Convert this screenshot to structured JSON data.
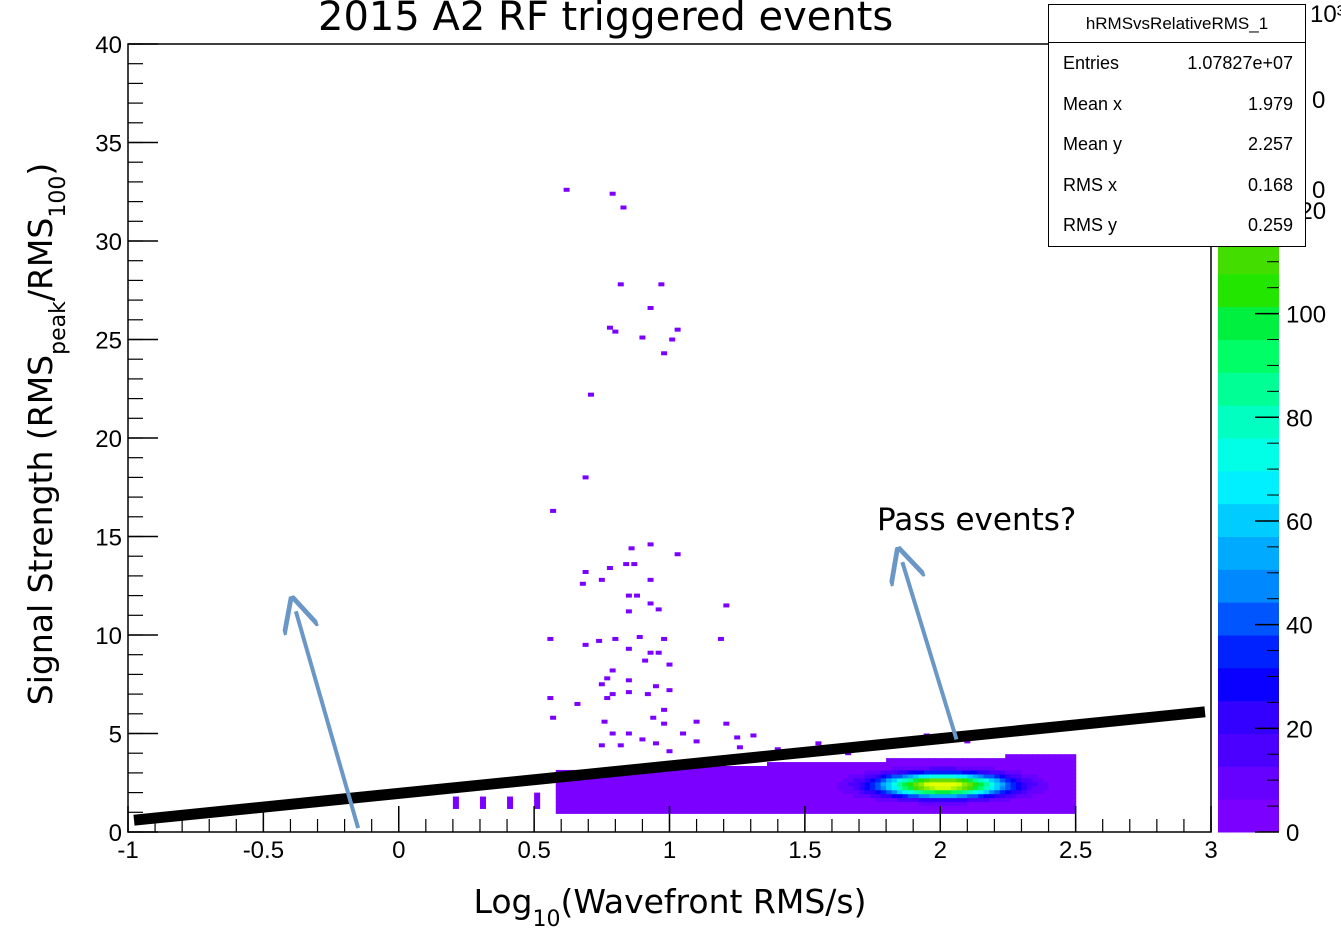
{
  "chart_data": {
    "type": "heatmap",
    "title": "2015 A2 RF triggered events",
    "xlabel": "Log10(Wavefront RMS/s)",
    "ylabel": "Signal Strength (RMSpeak/RMS100)",
    "xlim": [
      -1,
      3
    ],
    "ylim": [
      0,
      40
    ],
    "x_ticks": [
      "-1",
      "-0.5",
      "0",
      "0.5",
      "1",
      "1.5",
      "2",
      "2.5",
      "3"
    ],
    "y_ticks": [
      "0",
      "5",
      "10",
      "15",
      "20",
      "25",
      "30",
      "35",
      "40"
    ],
    "colorbar": {
      "ticks": [
        "0",
        "20",
        "40",
        "60",
        "80",
        "100",
        "120"
      ],
      "exponent_label": "10³",
      "colors": [
        "#7b00ff",
        "#6600ff",
        "#4b00ff",
        "#3300ff",
        "#0a00ff",
        "#0022ff",
        "#0055ff",
        "#0088ff",
        "#00aaff",
        "#00ccff",
        "#00f0ff",
        "#00ffe6",
        "#00ffc0",
        "#00ff95",
        "#00ff66",
        "#00f040",
        "#22e600",
        "#44dd00",
        "#66e000",
        "#88ee00",
        "#aaf500",
        "#ccff00",
        "#e6ff00",
        "#ffff00"
      ]
    },
    "scatter_points": [
      [
        0.62,
        32.6
      ],
      [
        0.79,
        32.4
      ],
      [
        0.83,
        31.7
      ],
      [
        0.82,
        27.8
      ],
      [
        0.97,
        27.8
      ],
      [
        0.93,
        26.6
      ],
      [
        0.78,
        25.6
      ],
      [
        0.8,
        25.4
      ],
      [
        1.03,
        25.5
      ],
      [
        0.9,
        25.1
      ],
      [
        1.01,
        25.0
      ],
      [
        0.98,
        24.3
      ],
      [
        0.71,
        22.2
      ],
      [
        0.69,
        18.0
      ],
      [
        0.57,
        16.3
      ],
      [
        0.93,
        14.6
      ],
      [
        0.86,
        14.4
      ],
      [
        1.03,
        14.1
      ],
      [
        0.78,
        13.4
      ],
      [
        0.84,
        13.6
      ],
      [
        0.87,
        13.6
      ],
      [
        0.69,
        13.2
      ],
      [
        0.75,
        12.8
      ],
      [
        0.68,
        12.6
      ],
      [
        0.93,
        12.8
      ],
      [
        0.85,
        12.0
      ],
      [
        0.88,
        12.0
      ],
      [
        0.93,
        11.6
      ],
      [
        0.96,
        11.3
      ],
      [
        1.21,
        11.5
      ],
      [
        0.85,
        11.2
      ],
      [
        1.19,
        9.8
      ],
      [
        0.56,
        9.8
      ],
      [
        0.74,
        9.7
      ],
      [
        0.8,
        9.8
      ],
      [
        0.89,
        9.9
      ],
      [
        0.98,
        9.8
      ],
      [
        0.69,
        9.5
      ],
      [
        0.85,
        9.3
      ],
      [
        0.93,
        9.1
      ],
      [
        0.96,
        9.1
      ],
      [
        0.91,
        8.7
      ],
      [
        1.0,
        8.5
      ],
      [
        0.79,
        8.2
      ],
      [
        0.77,
        7.8
      ],
      [
        0.85,
        7.7
      ],
      [
        0.95,
        7.4
      ],
      [
        1.0,
        7.2
      ],
      [
        0.75,
        7.5
      ],
      [
        0.79,
        7.0
      ],
      [
        0.85,
        7.1
      ],
      [
        0.92,
        7.0
      ],
      [
        0.56,
        6.8
      ],
      [
        0.77,
        6.8
      ],
      [
        0.66,
        6.5
      ],
      [
        0.98,
        6.2
      ],
      [
        0.94,
        5.8
      ],
      [
        0.57,
        5.8
      ],
      [
        0.76,
        5.6
      ],
      [
        0.98,
        5.5
      ],
      [
        1.1,
        5.6
      ],
      [
        1.21,
        5.5
      ],
      [
        0.79,
        5.0
      ],
      [
        0.85,
        5.0
      ],
      [
        0.9,
        4.7
      ],
      [
        1.05,
        5.0
      ],
      [
        1.1,
        4.6
      ],
      [
        1.25,
        4.8
      ],
      [
        1.31,
        4.9
      ],
      [
        0.75,
        4.4
      ],
      [
        0.82,
        4.4
      ],
      [
        0.95,
        4.5
      ],
      [
        1.26,
        4.3
      ],
      [
        1.55,
        4.5
      ],
      [
        1.79,
        4.6
      ],
      [
        1.95,
        4.9
      ],
      [
        1.0,
        4.1
      ],
      [
        1.4,
        4.2
      ],
      [
        1.66,
        4.0
      ],
      [
        2.03,
        4.7
      ],
      [
        2.1,
        4.6
      ]
    ],
    "dense_region": {
      "x_range": [
        0.57,
        2.5
      ],
      "y_range": [
        0.8,
        4.0
      ],
      "peak": [
        2.0,
        2.3
      ],
      "tail_x_range": [
        0.12,
        0.57
      ]
    },
    "stats_box": {
      "name": "hRMSvsRelativeRMS_1",
      "rows": [
        {
          "label": "Entries",
          "value": "1.07827e+07"
        },
        {
          "label": "Mean x",
          "value": "1.979"
        },
        {
          "label": "Mean y",
          "value": "2.257"
        },
        {
          "label": "RMS x",
          "value": "0.168"
        },
        {
          "label": "RMS y",
          "value": "0.259"
        }
      ]
    },
    "annotations": [
      {
        "text": "Pass events?"
      }
    ],
    "cut_line": {
      "from": [
        -1.0,
        0.6
      ],
      "to": [
        3.0,
        6.1
      ]
    },
    "arrows": [
      {
        "from": [
          -0.15,
          0.2
        ],
        "to": [
          -0.38,
          11.2
        ]
      },
      {
        "from": [
          2.06,
          4.7
        ],
        "to": [
          1.86,
          13.7
        ]
      }
    ],
    "colors": {
      "line": "#000000",
      "arrow": "#6a97c6",
      "points": "#7b00ff"
    }
  }
}
